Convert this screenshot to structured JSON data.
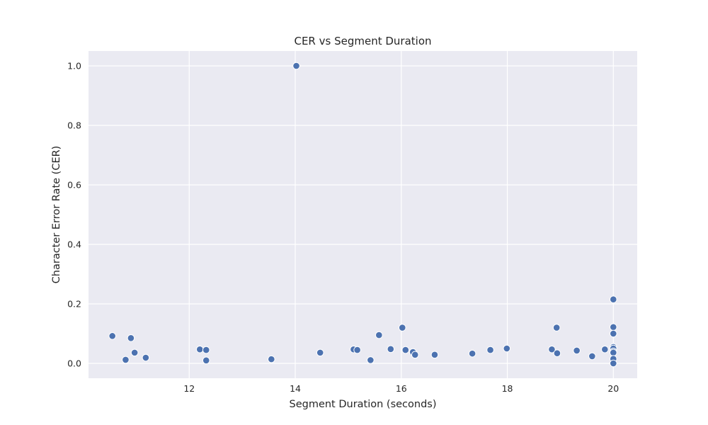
{
  "chart_data": {
    "type": "scatter",
    "title": "CER vs Segment Duration",
    "xlabel": "Segment Duration (seconds)",
    "ylabel": "Character Error Rate (CER)",
    "xlim": [
      10.1,
      20.45
    ],
    "ylim": [
      -0.05,
      1.05
    ],
    "xticks": [
      12,
      14,
      16,
      18,
      20
    ],
    "yticks": [
      0.0,
      0.2,
      0.4,
      0.6,
      0.8,
      1.0
    ],
    "grid": true,
    "legend": "none",
    "colors": {
      "point": "#4c72b0",
      "background": "#eaeaf2",
      "grid": "#ffffff",
      "text": "#262626"
    },
    "points": [
      {
        "x": 10.55,
        "y": 0.092
      },
      {
        "x": 10.8,
        "y": 0.012
      },
      {
        "x": 10.9,
        "y": 0.085
      },
      {
        "x": 10.97,
        "y": 0.036
      },
      {
        "x": 11.18,
        "y": 0.019
      },
      {
        "x": 12.2,
        "y": 0.047
      },
      {
        "x": 12.32,
        "y": 0.045
      },
      {
        "x": 12.32,
        "y": 0.01
      },
      {
        "x": 13.55,
        "y": 0.014
      },
      {
        "x": 14.02,
        "y": 1.0
      },
      {
        "x": 14.47,
        "y": 0.036
      },
      {
        "x": 15.1,
        "y": 0.047
      },
      {
        "x": 15.17,
        "y": 0.045
      },
      {
        "x": 15.42,
        "y": 0.011
      },
      {
        "x": 15.58,
        "y": 0.095
      },
      {
        "x": 15.8,
        "y": 0.048
      },
      {
        "x": 16.02,
        "y": 0.12
      },
      {
        "x": 16.08,
        "y": 0.045
      },
      {
        "x": 16.22,
        "y": 0.038
      },
      {
        "x": 16.26,
        "y": 0.029
      },
      {
        "x": 16.63,
        "y": 0.029
      },
      {
        "x": 17.34,
        "y": 0.033
      },
      {
        "x": 17.68,
        "y": 0.045
      },
      {
        "x": 17.99,
        "y": 0.05
      },
      {
        "x": 18.84,
        "y": 0.047
      },
      {
        "x": 18.93,
        "y": 0.12
      },
      {
        "x": 18.94,
        "y": 0.034
      },
      {
        "x": 19.31,
        "y": 0.043
      },
      {
        "x": 19.6,
        "y": 0.024
      },
      {
        "x": 19.84,
        "y": 0.047
      },
      {
        "x": 20.0,
        "y": 0.215
      },
      {
        "x": 20.0,
        "y": 0.122
      },
      {
        "x": 20.0,
        "y": 0.1
      },
      {
        "x": 20.0,
        "y": 0.055
      },
      {
        "x": 20.0,
        "y": 0.05
      },
      {
        "x": 20.0,
        "y": 0.04
      },
      {
        "x": 20.0,
        "y": 0.036
      },
      {
        "x": 20.0,
        "y": 0.015
      },
      {
        "x": 20.0,
        "y": 0.0
      }
    ]
  }
}
